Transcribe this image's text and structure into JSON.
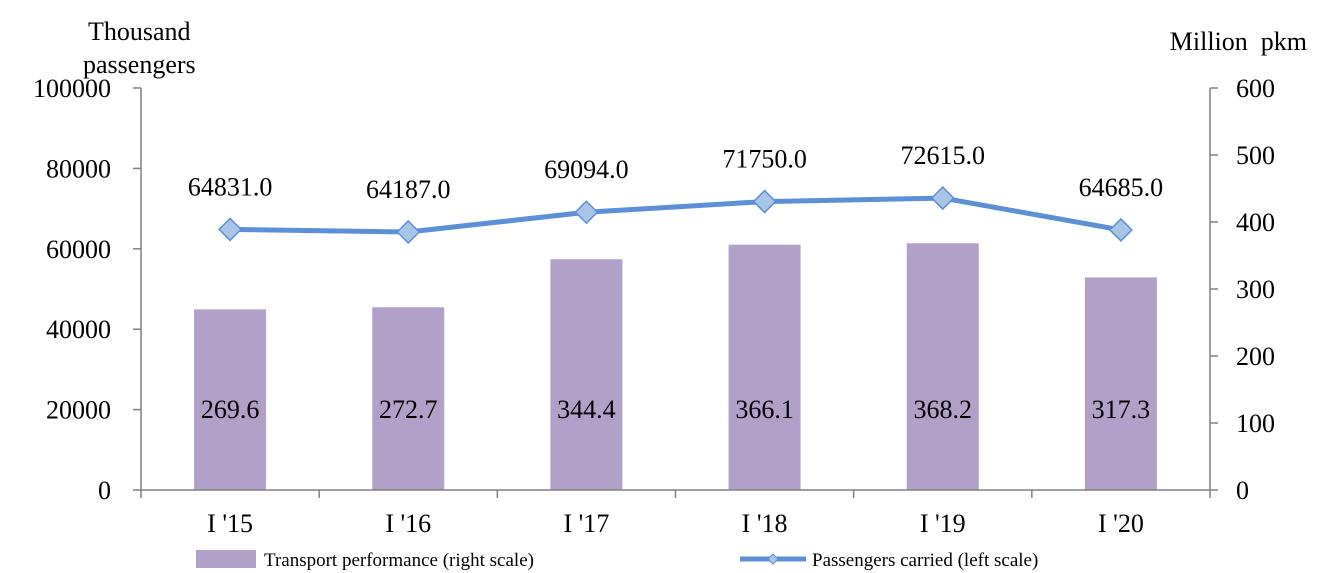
{
  "chart_data": {
    "type": "bar",
    "categories": [
      "I '15",
      "I '16",
      "I '17",
      "I '18",
      "I '19",
      "I '20"
    ],
    "series": [
      {
        "name": "Transport performance (right scale)",
        "type": "bar",
        "axis": "right",
        "values": [
          269.6,
          272.7,
          344.4,
          366.1,
          368.2,
          317.3
        ],
        "color": "#b1a0c7"
      },
      {
        "name": "Passengers carried (left scale)",
        "type": "line",
        "axis": "left",
        "values": [
          64831.0,
          64187.0,
          69094.0,
          71750.0,
          72615.0,
          64685.0
        ],
        "color": "#5b8fd6",
        "marker_color": "#a8c4e6"
      }
    ],
    "bar_labels": [
      "269.6",
      "272.7",
      "344.4",
      "366.1",
      "368.2",
      "317.3"
    ],
    "line_labels": [
      "64831.0",
      "64187.0",
      "69094.0",
      "71750.0",
      "72615.0",
      "64685.0"
    ],
    "left_axis": {
      "title_line1": "Thousand",
      "title_line2": "passengers",
      "range": [
        0,
        100000
      ],
      "ticks": [
        "0",
        "20000",
        "40000",
        "60000",
        "80000",
        "100000"
      ]
    },
    "right_axis": {
      "title": "Million  pkm",
      "range": [
        0,
        600
      ],
      "ticks": [
        "0",
        "100",
        "200",
        "300",
        "400",
        "500",
        "600"
      ]
    },
    "grid": false,
    "legend_position": "bottom"
  }
}
